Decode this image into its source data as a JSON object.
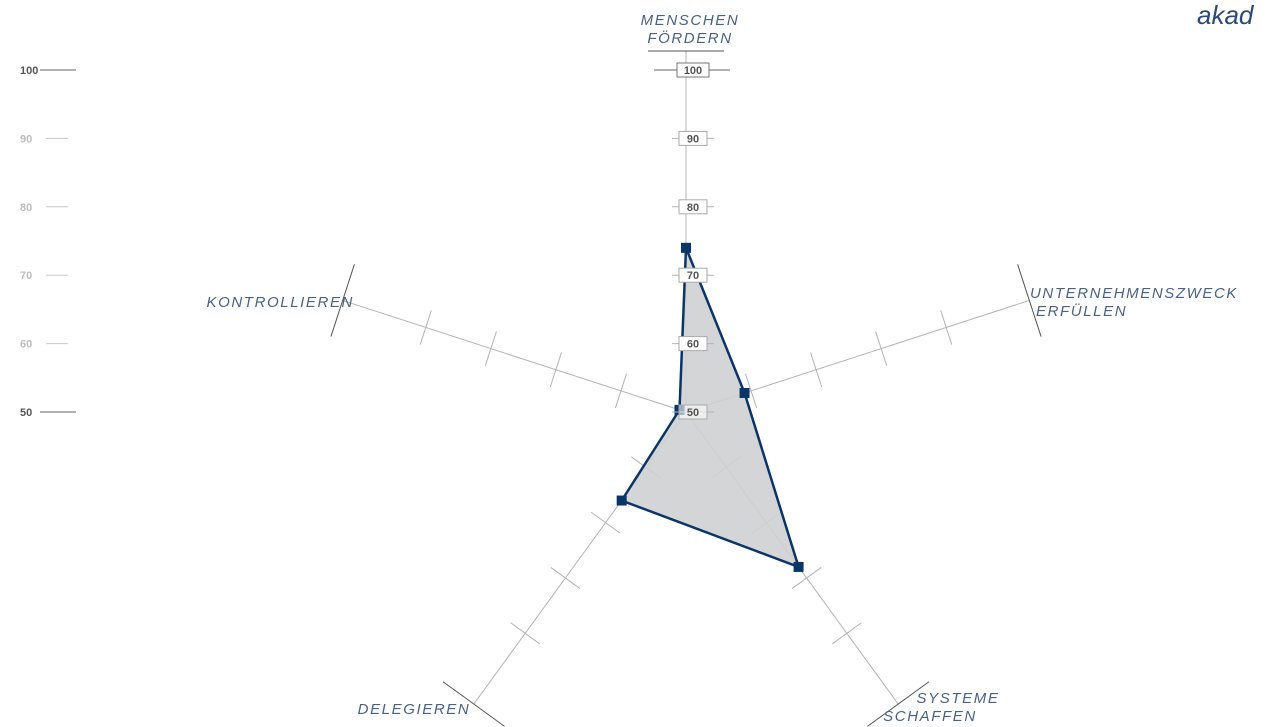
{
  "brand": {
    "text": "akad"
  },
  "chart_data": {
    "type": "radar",
    "axes": [
      {
        "label_lines": [
          "MENSCHEN",
          "FÖRDERN"
        ]
      },
      {
        "label_lines": [
          "UNTERNEHMENSZWECK",
          "ERFÜLLEN"
        ]
      },
      {
        "label_lines": [
          "SYSTEME",
          "SCHAFFEN"
        ]
      },
      {
        "label_lines": [
          "DELEGIEREN"
        ]
      },
      {
        "label_lines": [
          "KONTROLLIEREN"
        ]
      }
    ],
    "values": [
      74,
      59,
      78,
      66,
      51
    ],
    "range": [
      50,
      100
    ],
    "tick_step": 10,
    "tick_labels": [
      "50",
      "60",
      "70",
      "80",
      "90",
      "100"
    ],
    "left_scale": [
      "100",
      "90",
      "80",
      "70",
      "60",
      "50"
    ],
    "colors": {
      "line": "#0b3566",
      "fill": "#cfd0d3",
      "axis": "#b4b4b4",
      "label": "#4a6283"
    }
  }
}
